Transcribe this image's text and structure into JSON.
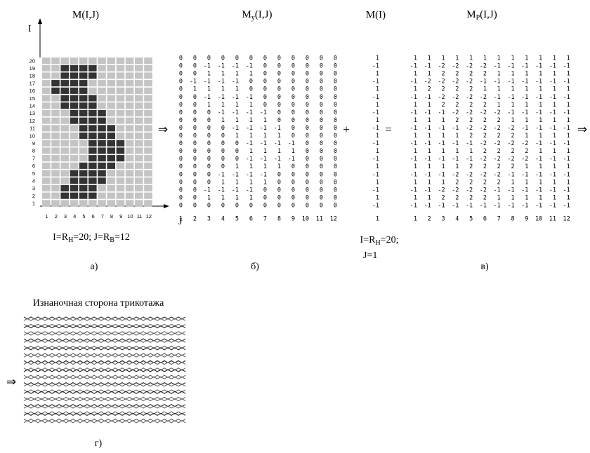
{
  "panel_a": {
    "title": "M(I,J)",
    "axis_i": "I",
    "axis_j": "J",
    "row_labels": [
      20,
      19,
      18,
      17,
      16,
      15,
      14,
      13,
      12,
      11,
      10,
      9,
      8,
      7,
      6,
      5,
      4,
      3,
      2,
      1
    ],
    "col_labels": [
      1,
      2,
      3,
      4,
      5,
      6,
      7,
      8,
      9,
      10,
      11,
      12
    ],
    "caption": [
      "I=R",
      "H",
      "=20; J=R",
      "B",
      "=12"
    ],
    "label": "а)"
  },
  "panel_b": {
    "title": [
      "M",
      "y",
      "(I,J)"
    ],
    "col_labels": [
      1,
      2,
      3,
      4,
      5,
      6,
      7,
      8,
      9,
      10,
      11,
      12
    ],
    "label": "б)",
    "matrix": [
      [
        0,
        0,
        0,
        0,
        0,
        0,
        0,
        0,
        0,
        0,
        0,
        0
      ],
      [
        0,
        0,
        -1,
        -1,
        -1,
        -1,
        0,
        0,
        0,
        0,
        0,
        0
      ],
      [
        0,
        0,
        1,
        1,
        1,
        1,
        0,
        0,
        0,
        0,
        0,
        0
      ],
      [
        0,
        -1,
        -1,
        -1,
        -1,
        0,
        0,
        0,
        0,
        0,
        0,
        0
      ],
      [
        0,
        1,
        1,
        1,
        1,
        0,
        0,
        0,
        0,
        0,
        0,
        0
      ],
      [
        0,
        0,
        -1,
        -1,
        -1,
        -1,
        0,
        0,
        0,
        0,
        0,
        0
      ],
      [
        0,
        0,
        1,
        1,
        1,
        1,
        0,
        0,
        0,
        0,
        0,
        0
      ],
      [
        0,
        0,
        0,
        -1,
        -1,
        -1,
        -1,
        0,
        0,
        0,
        0,
        0
      ],
      [
        0,
        0,
        0,
        1,
        1,
        1,
        1,
        0,
        0,
        0,
        0,
        0
      ],
      [
        0,
        0,
        0,
        0,
        -1,
        -1,
        -1,
        -1,
        0,
        0,
        0,
        0
      ],
      [
        0,
        0,
        0,
        0,
        1,
        1,
        1,
        1,
        0,
        0,
        0,
        0
      ],
      [
        0,
        0,
        0,
        0,
        0,
        -1,
        -1,
        -1,
        -1,
        0,
        0,
        0
      ],
      [
        0,
        0,
        0,
        0,
        0,
        1,
        1,
        1,
        1,
        0,
        0,
        0
      ],
      [
        0,
        0,
        0,
        0,
        0,
        -1,
        -1,
        -1,
        -1,
        0,
        0,
        0
      ],
      [
        0,
        0,
        0,
        0,
        1,
        1,
        1,
        1,
        0,
        0,
        0,
        0
      ],
      [
        0,
        0,
        0,
        -1,
        -1,
        -1,
        -1,
        0,
        0,
        0,
        0,
        0
      ],
      [
        0,
        0,
        0,
        1,
        1,
        1,
        1,
        0,
        0,
        0,
        0,
        0
      ],
      [
        0,
        0,
        -1,
        -1,
        -1,
        -1,
        0,
        0,
        0,
        0,
        0,
        0
      ],
      [
        0,
        0,
        1,
        1,
        1,
        1,
        0,
        0,
        0,
        0,
        0,
        0
      ],
      [
        0,
        0,
        0,
        0,
        0,
        0,
        0,
        0,
        0,
        0,
        0,
        0
      ]
    ]
  },
  "plus": "+",
  "equals": "=",
  "arrow": "⇒",
  "column_m": {
    "title": "M(I)",
    "values": [
      1,
      -1,
      1,
      -1,
      1,
      -1,
      1,
      -1,
      1,
      -1,
      1,
      -1,
      1,
      -1,
      1,
      -1,
      1,
      -1,
      1,
      -1
    ],
    "col_label": 1,
    "caption": [
      "I=R",
      "H",
      "=20;"
    ],
    "caption2": "J=1"
  },
  "panel_c": {
    "title": [
      "M",
      "P",
      "(I,J)"
    ],
    "col_labels": [
      1,
      2,
      3,
      4,
      5,
      6,
      7,
      8,
      9,
      10,
      11,
      12
    ],
    "label": "в)",
    "matrix": [
      [
        1,
        1,
        1,
        1,
        1,
        1,
        1,
        1,
        1,
        1,
        1,
        1
      ],
      [
        -1,
        -1,
        -2,
        -2,
        -2,
        -2,
        -1,
        -1,
        -1,
        -1,
        -1,
        -1
      ],
      [
        1,
        1,
        2,
        2,
        2,
        2,
        1,
        1,
        1,
        1,
        1,
        1
      ],
      [
        -1,
        -2,
        -2,
        -2,
        -2,
        -1,
        -1,
        -1,
        -1,
        -1,
        -1,
        -1
      ],
      [
        1,
        2,
        2,
        2,
        2,
        1,
        1,
        1,
        1,
        1,
        1,
        1
      ],
      [
        -1,
        -1,
        -2,
        -2,
        -2,
        -2,
        -1,
        -1,
        -1,
        -1,
        -1,
        -1
      ],
      [
        1,
        1,
        2,
        2,
        2,
        2,
        1,
        1,
        1,
        1,
        1,
        1
      ],
      [
        -1,
        -1,
        -1,
        -2,
        -2,
        -2,
        -2,
        -1,
        -1,
        -1,
        -1,
        -1
      ],
      [
        1,
        1,
        1,
        2,
        2,
        2,
        2,
        1,
        1,
        1,
        1,
        1
      ],
      [
        -1,
        -1,
        -1,
        -1,
        -2,
        -2,
        -2,
        -2,
        -1,
        -1,
        -1,
        -1
      ],
      [
        1,
        1,
        1,
        1,
        2,
        2,
        2,
        2,
        1,
        1,
        1,
        1
      ],
      [
        -1,
        -1,
        -1,
        -1,
        -1,
        -2,
        -2,
        -2,
        -2,
        -1,
        -1,
        -1
      ],
      [
        1,
        1,
        1,
        1,
        1,
        2,
        2,
        2,
        2,
        1,
        1,
        1
      ],
      [
        -1,
        -1,
        -1,
        -1,
        -1,
        -2,
        -2,
        -2,
        -2,
        -1,
        -1,
        -1
      ],
      [
        1,
        1,
        1,
        1,
        2,
        2,
        2,
        2,
        1,
        1,
        1,
        1
      ],
      [
        -1,
        -1,
        -1,
        -2,
        -2,
        -2,
        -2,
        -1,
        -1,
        -1,
        -1,
        -1
      ],
      [
        1,
        1,
        1,
        2,
        2,
        2,
        2,
        1,
        1,
        1,
        1,
        1
      ],
      [
        -1,
        -1,
        -2,
        -2,
        -2,
        -2,
        -1,
        -1,
        -1,
        -1,
        -1,
        -1
      ],
      [
        1,
        1,
        2,
        2,
        2,
        2,
        1,
        1,
        1,
        1,
        1,
        1
      ],
      [
        -1,
        -1,
        -1,
        -1,
        -1,
        -1,
        -1,
        -1,
        -1,
        -1,
        -1,
        -1
      ]
    ]
  },
  "panel_d": {
    "title": "Изнаночная сторона трикотажа",
    "label": "г)"
  }
}
